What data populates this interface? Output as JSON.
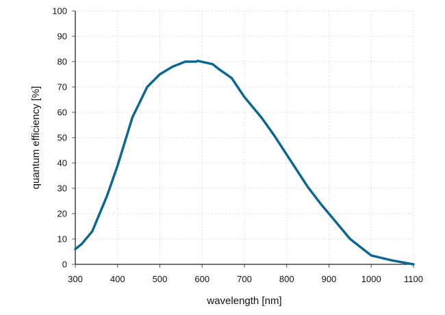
{
  "chart_data": {
    "type": "line",
    "title": "",
    "xlabel": "wavelength [nm]",
    "ylabel": "quantum efficiency [%]",
    "xlim": [
      300,
      1100
    ],
    "ylim": [
      0,
      100
    ],
    "xticks": [
      300,
      400,
      500,
      600,
      700,
      800,
      900,
      1000,
      1100
    ],
    "yticks": [
      0,
      10,
      20,
      30,
      40,
      50,
      60,
      70,
      80,
      90,
      100
    ],
    "grid": true,
    "legend": "none",
    "line_color": "#0d6690",
    "series": [
      {
        "x": [
          300,
          315,
          340,
          375,
          400,
          435,
          470,
          500,
          530,
          560,
          585,
          590,
          625,
          640,
          670,
          700,
          740,
          770,
          850,
          880,
          950,
          1000,
          1050,
          1100
        ],
        "y": [
          6,
          8,
          13,
          27,
          39,
          58,
          70,
          75,
          78,
          80,
          80,
          80.3,
          79,
          77,
          73.5,
          66,
          58,
          51,
          30.5,
          24,
          10,
          3.5,
          1.5,
          0
        ]
      }
    ]
  }
}
